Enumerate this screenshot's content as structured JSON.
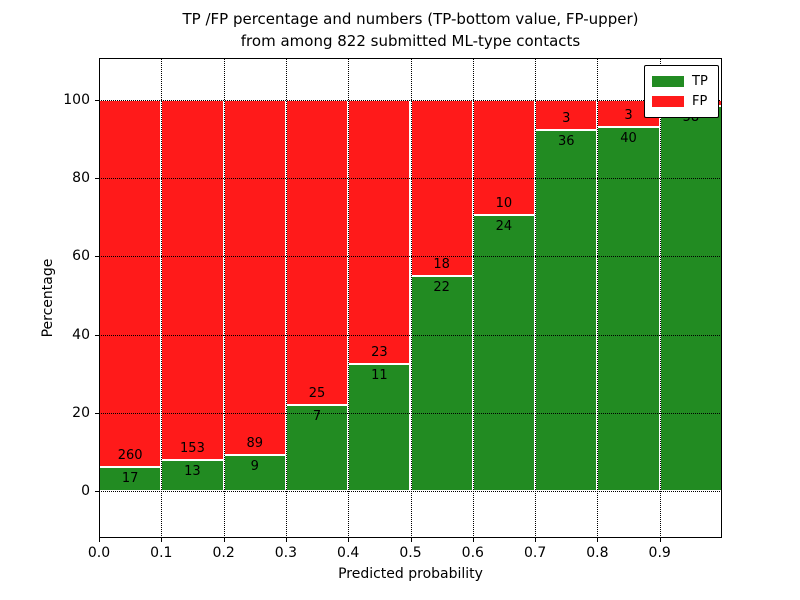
{
  "title": {
    "line1": "TP /FP percentage and numbers (TP-bottom value, FP-upper)",
    "line2": "from among 822 submitted ML-type contacts"
  },
  "axes": {
    "xlabel": "Predicted probability",
    "ylabel": "Percentage",
    "x_tick_labels": [
      "0.0",
      "0.1",
      "0.2",
      "0.3",
      "0.4",
      "0.5",
      "0.6",
      "0.7",
      "0.8",
      "0.9"
    ],
    "x_tick_values": [
      0.0,
      0.1,
      0.2,
      0.3,
      0.4,
      0.5,
      0.6,
      0.7,
      0.8,
      0.9
    ],
    "y_tick_labels": [
      "0",
      "20",
      "40",
      "60",
      "80",
      "100"
    ],
    "y_tick_values": [
      0,
      20,
      40,
      60,
      80,
      100
    ]
  },
  "legend": {
    "position": "upper right",
    "items": [
      {
        "label": "TP",
        "color": "#228B22"
      },
      {
        "label": "FP",
        "color": "#FF1A1A"
      }
    ]
  },
  "colors": {
    "tp": "#228B22",
    "fp": "#FF1A1A",
    "bar_edge": "#ffffff",
    "grid": "#000000",
    "text": "#000000",
    "background": "#ffffff"
  },
  "chart_data": {
    "type": "bar",
    "stacked": true,
    "normalized_to_percent": 100,
    "title": "TP /FP percentage and numbers (TP-bottom value, FP-upper) from among 822 submitted ML-type contacts",
    "xlabel": "Predicted probability",
    "ylabel": "Percentage",
    "xlim": [
      0,
      1
    ],
    "ylim": [
      -12,
      110.7
    ],
    "grid": true,
    "grid_style": "dotted",
    "legend_position": "upper right",
    "bin_width": 0.1,
    "total_contacts": 822,
    "series_names": [
      "TP",
      "FP"
    ],
    "bins": [
      {
        "x0": 0.0,
        "tp": 17,
        "fp": 260,
        "tp_label": "17",
        "fp_label": "260",
        "fp_label_visible": true
      },
      {
        "x0": 0.1,
        "tp": 13,
        "fp": 153,
        "tp_label": "13",
        "fp_label": "153",
        "fp_label_visible": true
      },
      {
        "x0": 0.2,
        "tp": 9,
        "fp": 89,
        "tp_label": "9",
        "fp_label": "89",
        "fp_label_visible": true
      },
      {
        "x0": 0.3,
        "tp": 7,
        "fp": 25,
        "tp_label": "7",
        "fp_label": "25",
        "fp_label_visible": true
      },
      {
        "x0": 0.4,
        "tp": 11,
        "fp": 23,
        "tp_label": "11",
        "fp_label": "23",
        "fp_label_visible": true
      },
      {
        "x0": 0.5,
        "tp": 22,
        "fp": 18,
        "tp_label": "22",
        "fp_label": "18",
        "fp_label_visible": true
      },
      {
        "x0": 0.6,
        "tp": 24,
        "fp": 10,
        "tp_label": "24",
        "fp_label": "10",
        "fp_label_visible": true
      },
      {
        "x0": 0.7,
        "tp": 36,
        "fp": 3,
        "tp_label": "36",
        "fp_label": "3",
        "fp_label_visible": true
      },
      {
        "x0": 0.8,
        "tp": 40,
        "fp": 3,
        "tp_label": "40",
        "fp_label": "3",
        "fp_label_visible": true
      },
      {
        "x0": 0.9,
        "tp": 58,
        "fp": 1,
        "tp_label": "58",
        "fp_label": "1",
        "fp_label_visible": false
      }
    ]
  }
}
